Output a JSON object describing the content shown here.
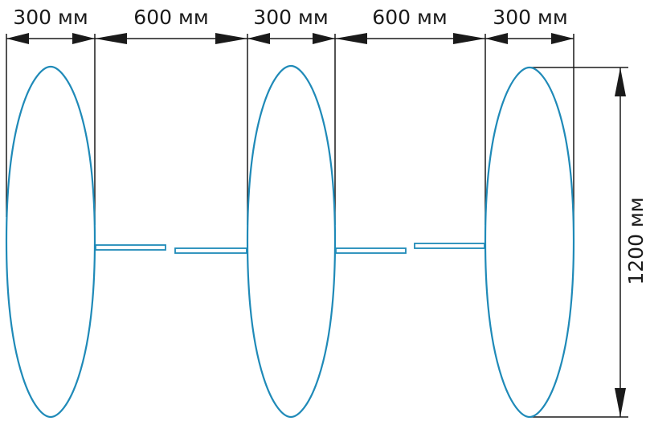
{
  "dimensions": {
    "width_labels": [
      "300 мм",
      "600 мм",
      "300 мм",
      "600 мм",
      "300 мм"
    ],
    "height_label": "1200 мм"
  },
  "colors": {
    "outline": "#1f8ab8",
    "dimension": "#1a1a1a",
    "background": "#ffffff"
  }
}
